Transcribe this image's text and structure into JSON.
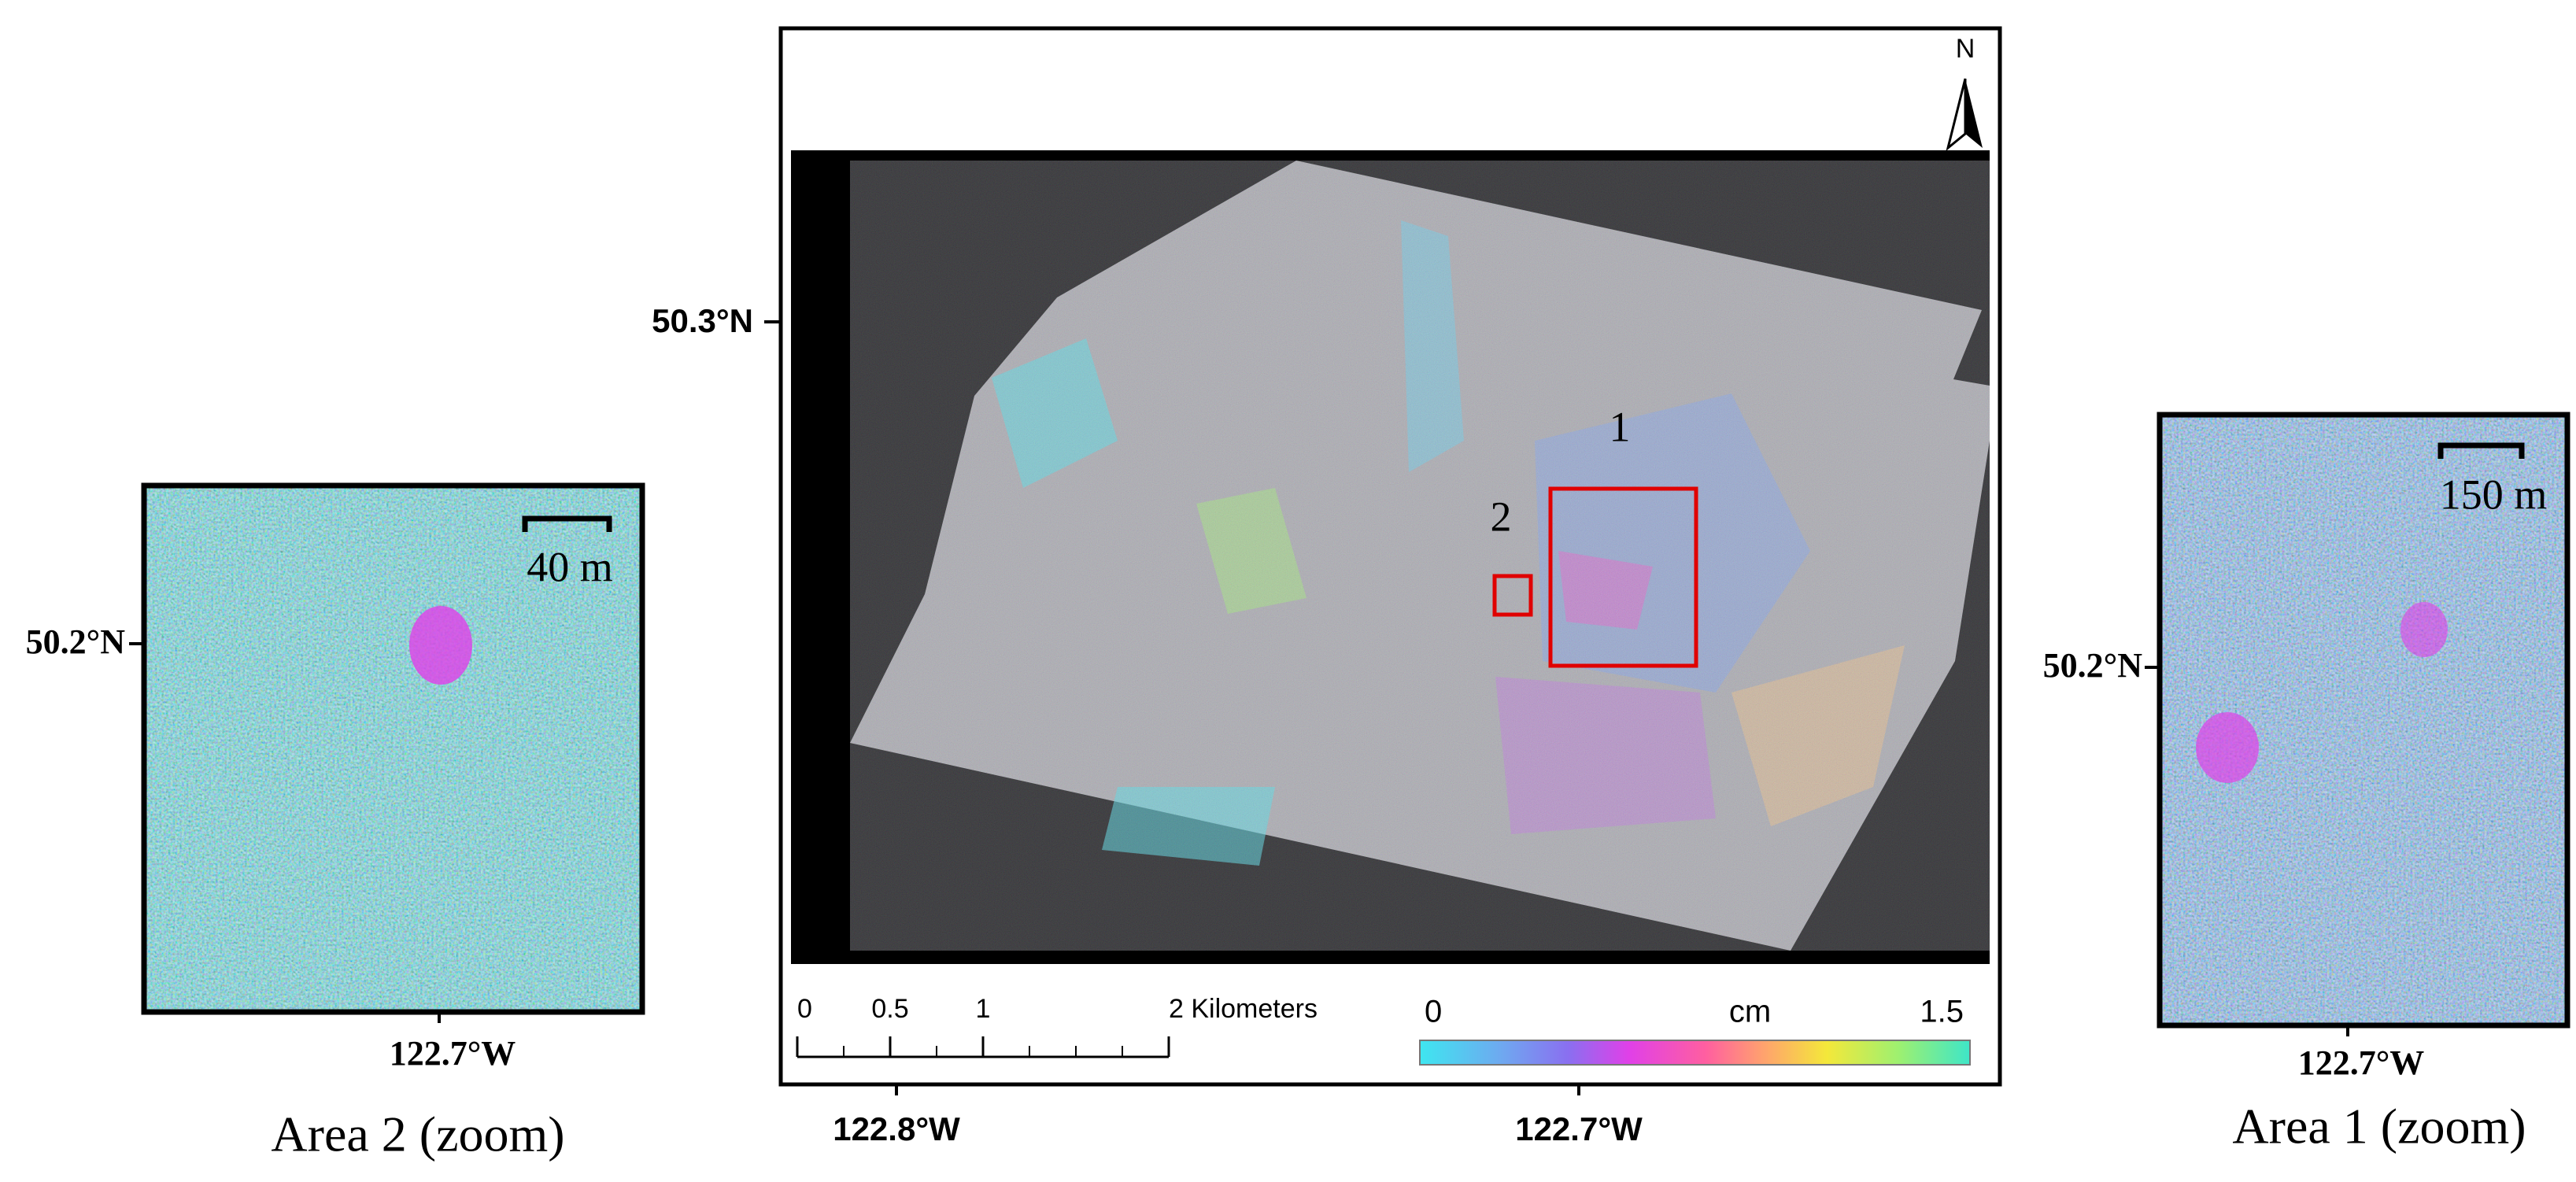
{
  "main_map": {
    "north_label": "N",
    "lat_label": "50.3°N",
    "lon_labels": [
      "122.8°W",
      "122.7°W"
    ],
    "areas": [
      {
        "label": "1"
      },
      {
        "label": "2"
      }
    ],
    "scale_bar": {
      "ticks": [
        0,
        0.5,
        1,
        {
          "value": 2,
          "label": "2 Kilometers"
        }
      ]
    },
    "colorbar": {
      "min": 0,
      "max": 1.5,
      "unit": "cm"
    }
  },
  "area2_zoom": {
    "title": "Area 2 (zoom)",
    "scale_label": "40 m",
    "lat_label": "50.2°N",
    "lon_label": "122.7°W"
  },
  "area1_zoom": {
    "title": "Area 1 (zoom)",
    "scale_label": "150 m",
    "lat_label": "50.2°N",
    "lon_label": "122.7°W"
  }
}
